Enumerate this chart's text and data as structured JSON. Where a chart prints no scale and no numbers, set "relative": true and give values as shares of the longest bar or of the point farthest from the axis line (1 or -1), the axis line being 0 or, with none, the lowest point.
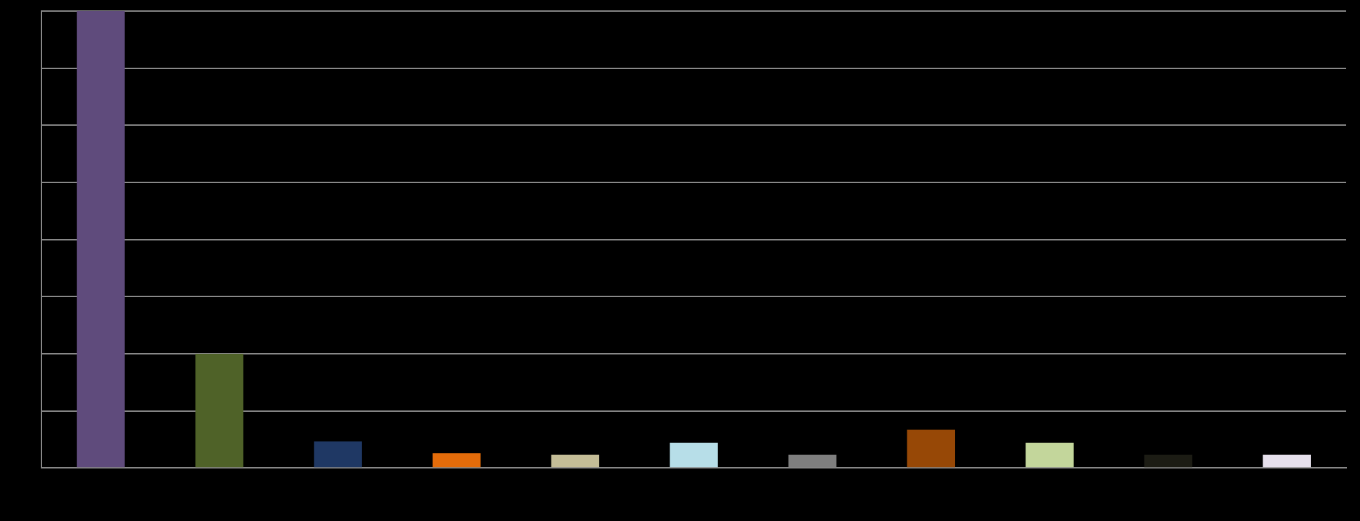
{
  "chart_data": {
    "type": "bar",
    "relative": true,
    "grid": "y",
    "categories": [
      null,
      null,
      null,
      null,
      null,
      null,
      null,
      null,
      null,
      null,
      null
    ],
    "values": [
      1,
      0.25,
      0.058,
      0.032,
      0.029,
      0.055,
      0.029,
      0.084,
      0.055,
      0.029,
      0.029
    ],
    "colors": [
      "#5f4b7c",
      "#4f6228",
      "#1f3864",
      "#e46c0a",
      "#c4bd97",
      "#b7dee8",
      "#7f7f7f",
      "#974806",
      "#c3d69b",
      "#1c1c14",
      "#e6e0ec"
    ]
  }
}
